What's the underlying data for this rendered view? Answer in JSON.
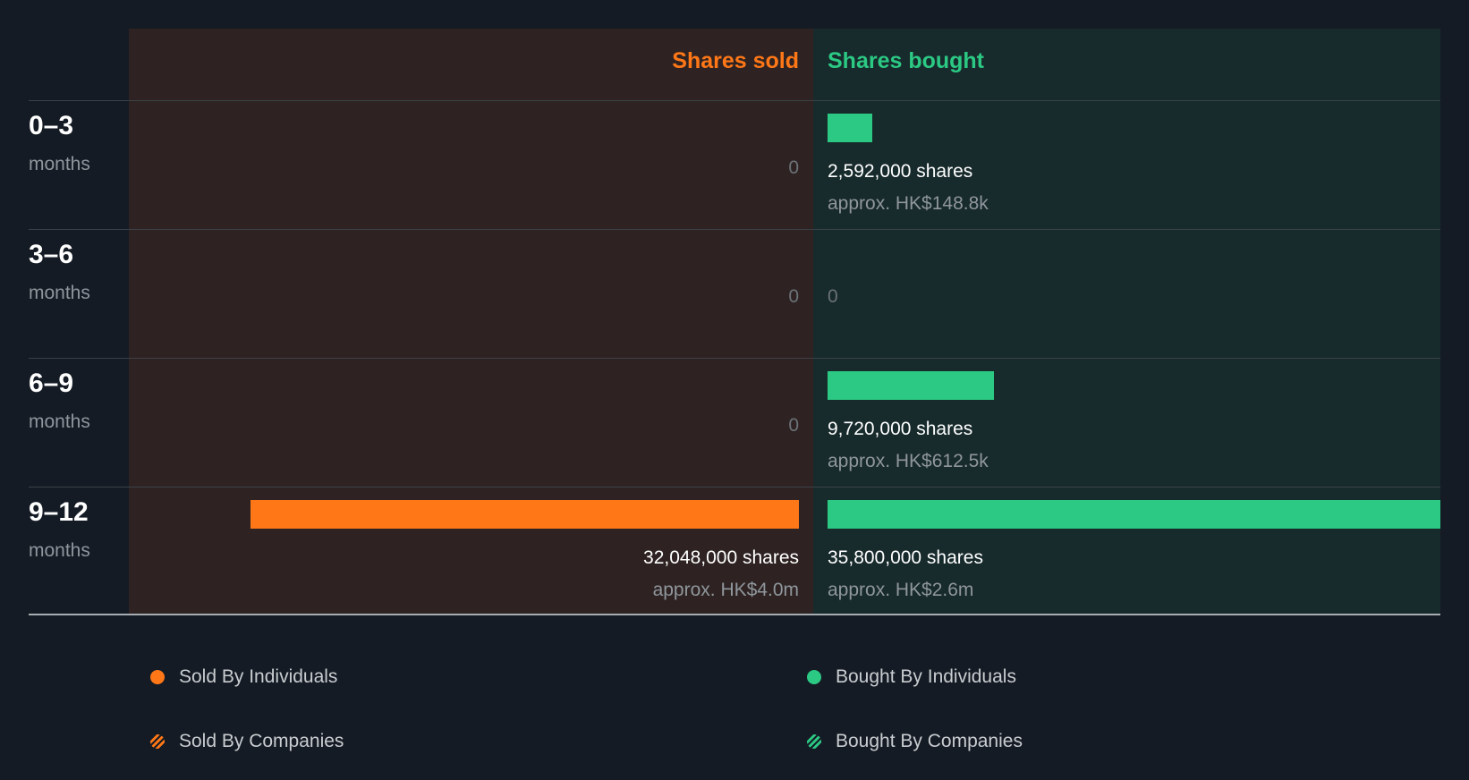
{
  "chart_data": {
    "type": "bar",
    "headers": {
      "sold": "Shares sold",
      "bought": "Shares bought"
    },
    "categories": [
      {
        "range": "0–3",
        "unit": "months"
      },
      {
        "range": "3–6",
        "unit": "months"
      },
      {
        "range": "6–9",
        "unit": "months"
      },
      {
        "range": "9–12",
        "unit": "months"
      }
    ],
    "series": [
      {
        "name": "Shares sold",
        "values": [
          0,
          0,
          0,
          32048000
        ],
        "labels": [
          "0",
          "0",
          "0",
          "32,048,000 shares"
        ],
        "approx": [
          "",
          "",
          "",
          "approx. HK$4.0m"
        ]
      },
      {
        "name": "Shares bought",
        "values": [
          2592000,
          0,
          9720000,
          35800000
        ],
        "labels": [
          "2,592,000 shares",
          "0",
          "9,720,000 shares",
          "35,800,000 shares"
        ],
        "approx": [
          "approx. HK$148.8k",
          "",
          "approx. HK$612.5k",
          "approx. HK$2.6m"
        ]
      }
    ],
    "max_value": 35800000,
    "legend": [
      {
        "label": "Sold By Individuals",
        "style": "solid",
        "color": "#ff7717"
      },
      {
        "label": "Bought By Individuals",
        "style": "solid",
        "color": "#2bc983"
      },
      {
        "label": "Sold By Companies",
        "style": "striped",
        "color": "#ff7717"
      },
      {
        "label": "Bought By Companies",
        "style": "striped",
        "color": "#2bc983"
      }
    ],
    "colors": {
      "sold": "#ff7717",
      "bought": "#2bc983",
      "background": "#141b24",
      "sold_panel": "#2e2322",
      "bought_panel": "#172a2c"
    }
  }
}
